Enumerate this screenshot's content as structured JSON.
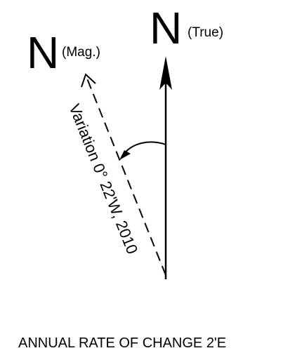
{
  "magnetic_north": {
    "letter": "N",
    "qualifier": "(Mag.)"
  },
  "true_north": {
    "letter": "N",
    "qualifier": "(True)"
  },
  "variation_label": "Variation 0° 22'W, 2010",
  "annual_change_label": "ANNUAL RATE OF CHANGE 2'E",
  "colors": {
    "ink": "#000000",
    "background": "#ffffff"
  }
}
